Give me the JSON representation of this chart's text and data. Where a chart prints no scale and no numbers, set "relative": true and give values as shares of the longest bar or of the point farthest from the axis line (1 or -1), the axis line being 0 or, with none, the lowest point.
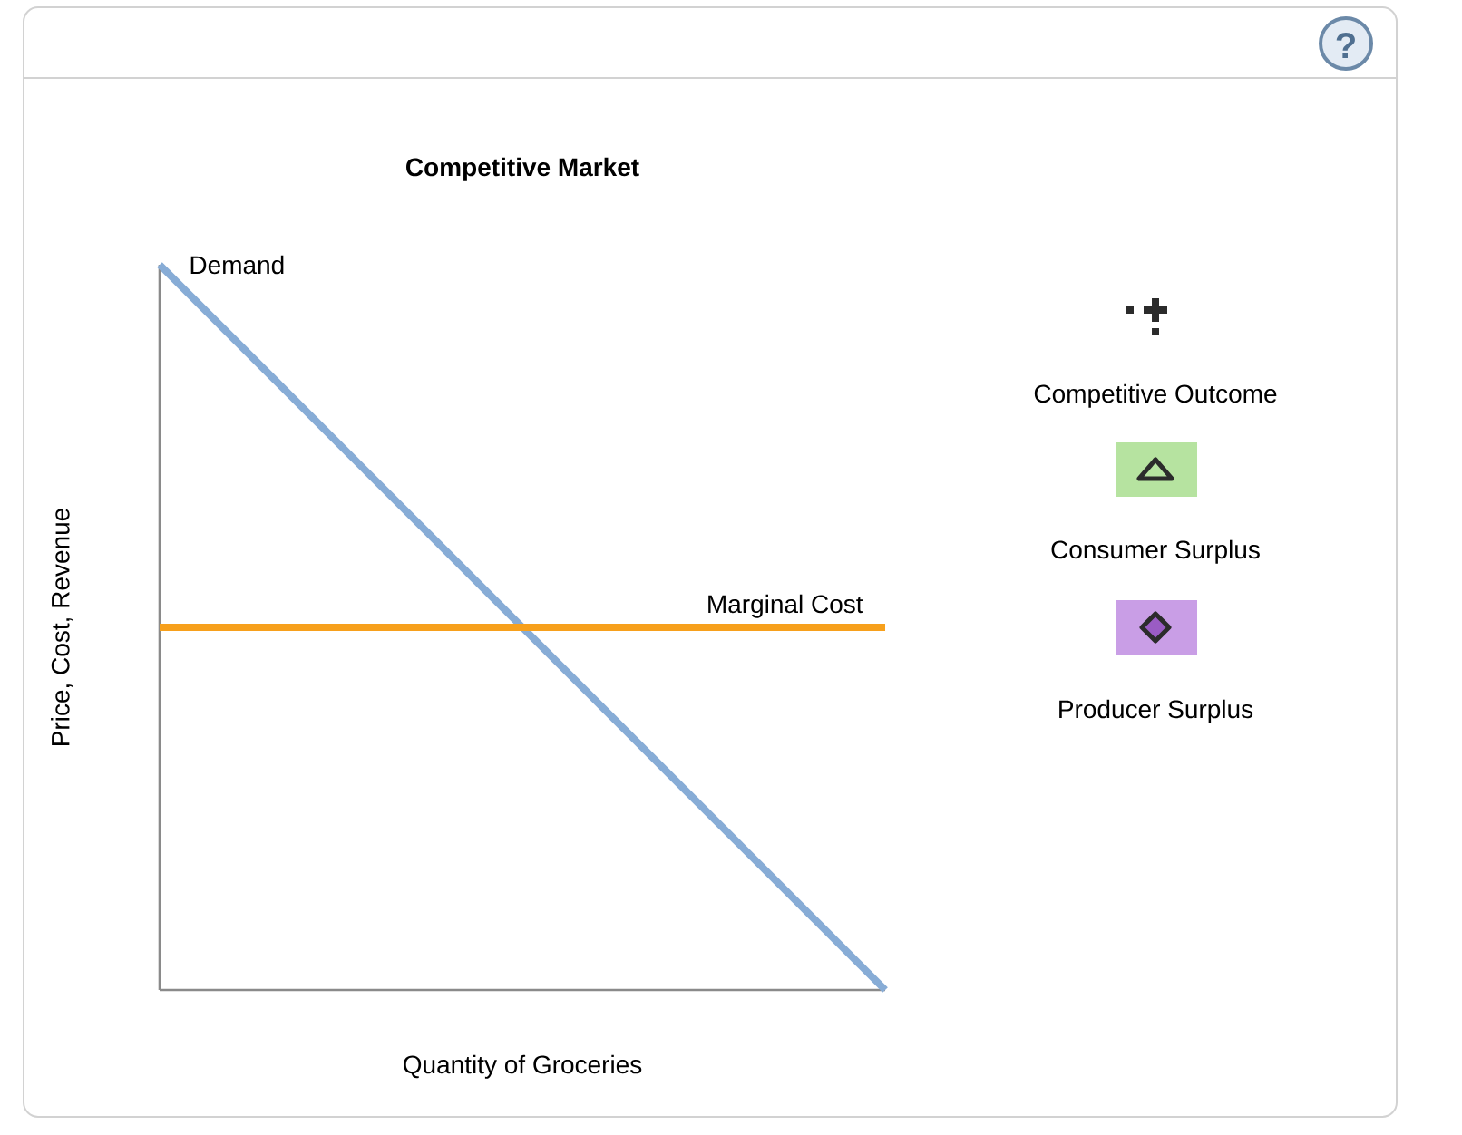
{
  "chart_data": {
    "type": "line",
    "title": "Competitive Market",
    "xlabel": "Quantity of Groceries",
    "ylabel": "Price, Cost, Revenue",
    "relative": true,
    "categories": [
      null,
      null
    ],
    "series": [
      {
        "name": "Demand",
        "color": "#87acd6",
        "values": [
          1,
          0
        ]
      },
      {
        "name": "Marginal Cost",
        "color": "#f7a01c",
        "values": [
          0.5,
          0.5
        ]
      }
    ],
    "annotations": [
      "Competitive Outcome",
      "Consumer Surplus",
      "Producer Surplus",
      "?"
    ]
  }
}
